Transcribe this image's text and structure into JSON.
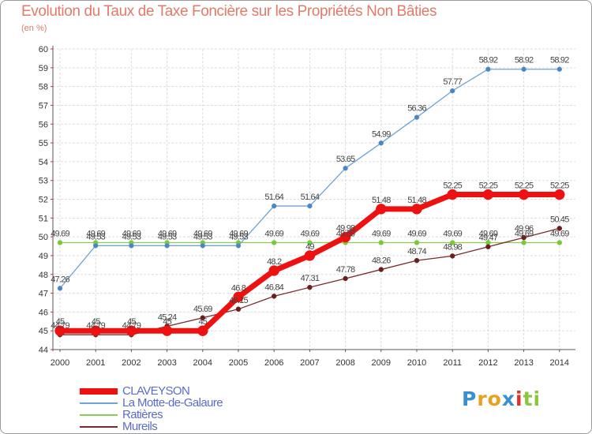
{
  "header": {
    "title": "Evolution du Taux de Taxe Foncière sur les Propriétés Non Bâties",
    "unit": "(en %)"
  },
  "logo": {
    "text": "Proxiti",
    "letters": [
      "P",
      "r",
      "o",
      "x",
      "i",
      "t",
      "i"
    ],
    "colors": [
      "#3a8fd0",
      "#e8a020",
      "#e8a020",
      "#3a8fd0",
      "#e0302a",
      "#8cc63f",
      "#8cc63f"
    ]
  },
  "chart_data": {
    "type": "line",
    "x": [
      "2000",
      "2001",
      "2002",
      "2003",
      "2004",
      "2005",
      "2006",
      "2007",
      "2008",
      "2009",
      "2010",
      "2011",
      "2012",
      "2013",
      "2014"
    ],
    "ylim": [
      44,
      60
    ],
    "yticks": [
      "44",
      "45",
      "46",
      "47",
      "48",
      "49",
      "50",
      "51",
      "52",
      "53",
      "54",
      "55",
      "56",
      "57",
      "58",
      "59",
      "60"
    ],
    "grid": true,
    "legend_position": "bottom-left",
    "series": [
      {
        "name": "CLAVEYSON",
        "color": "#ee1111",
        "values": [
          45,
          45,
          45,
          45,
          45,
          46.8,
          48.2,
          49,
          49.98,
          51.48,
          51.48,
          52.25,
          52.25,
          52.25,
          52.25
        ],
        "labels": [
          "45",
          "45",
          "45",
          "45",
          "45",
          "46.8",
          "48.2",
          "49",
          "49.98",
          "51.48",
          "51.48",
          "52.25",
          "52.25",
          "52.25",
          "52.25"
        ]
      },
      {
        "name": "La Motte-de-Galaure",
        "color": "#6fa3d2",
        "values": [
          47.26,
          49.53,
          49.53,
          49.53,
          49.53,
          49.53,
          51.64,
          51.64,
          53.65,
          54.99,
          56.36,
          57.77,
          58.92,
          58.92,
          58.92
        ],
        "labels": [
          "47.26",
          "49.53",
          "49.53",
          "49.53",
          "49.53",
          "49.53",
          "51.64",
          "51.64",
          "53.65",
          "54.99",
          "56.36",
          "57.77",
          "58.92",
          "58.92",
          "58.92"
        ]
      },
      {
        "name": "Ratières",
        "color": "#88cc55",
        "values": [
          49.69,
          49.69,
          49.69,
          49.69,
          49.69,
          49.69,
          49.69,
          49.69,
          49.69,
          49.69,
          49.69,
          49.69,
          49.69,
          49.69,
          49.69
        ],
        "labels": [
          "49.69",
          "49.69",
          "49.69",
          "49.69",
          "49.69",
          "49.69",
          "49.69",
          "49.69",
          "49.69",
          "49.69",
          "49.69",
          "49.69",
          "49.69",
          "49.69",
          "49.69"
        ]
      },
      {
        "name": "Mureils",
        "color": "#7a2a2a",
        "values": [
          44.79,
          44.79,
          44.79,
          45.24,
          45.69,
          46.15,
          46.84,
          47.31,
          47.78,
          48.26,
          48.74,
          48.98,
          49.47,
          49.96,
          50.45
        ],
        "labels": [
          "44.79",
          "44.79",
          "44.79",
          "45.24",
          "45.69",
          "46.15",
          "46.84",
          "47.31",
          "47.78",
          "48.26",
          "48.74",
          "48.98",
          "49.47",
          "49.96",
          "50.45"
        ]
      }
    ]
  }
}
